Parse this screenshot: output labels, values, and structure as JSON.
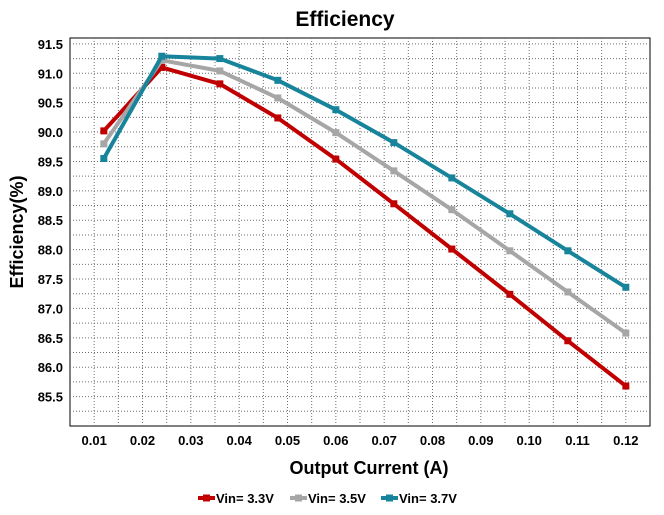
{
  "chart_data": {
    "type": "line",
    "title": "Efficiency",
    "xlabel": "Output Current (A)",
    "ylabel": "Efficiency(%)",
    "xlim": [
      0.005,
      0.125
    ],
    "ylim": [
      85.0,
      91.6
    ],
    "x_ticks": [
      "0.01",
      "0.02",
      "0.03",
      "0.04",
      "0.05",
      "0.06",
      "0.07",
      "0.08",
      "0.09",
      "0.10",
      "0.11",
      "0.12"
    ],
    "y_ticks": [
      "85.5",
      "86.0",
      "86.5",
      "87.0",
      "87.5",
      "88.0",
      "88.5",
      "89.0",
      "89.5",
      "90.0",
      "90.5",
      "91.0",
      "91.5"
    ],
    "grid": true,
    "legend_position": "bottom",
    "x": [
      0.012,
      0.024,
      0.036,
      0.048,
      0.06,
      0.072,
      0.084,
      0.096,
      0.108,
      0.12
    ],
    "series": [
      {
        "name": "Vin= 3.3V",
        "color": "#c00000",
        "values": [
          90.02,
          91.1,
          90.82,
          90.24,
          89.54,
          88.78,
          88.01,
          87.24,
          86.45,
          85.68
        ]
      },
      {
        "name": "Vin= 3.5V",
        "color": "#a6a6a6",
        "values": [
          89.8,
          91.22,
          91.04,
          90.58,
          89.99,
          89.34,
          88.68,
          87.98,
          87.28,
          86.58
        ]
      },
      {
        "name": "Vin= 3.7V",
        "color": "#17849b",
        "values": [
          89.55,
          91.29,
          91.25,
          90.88,
          90.38,
          89.82,
          89.22,
          88.61,
          87.98,
          87.36
        ]
      }
    ]
  }
}
